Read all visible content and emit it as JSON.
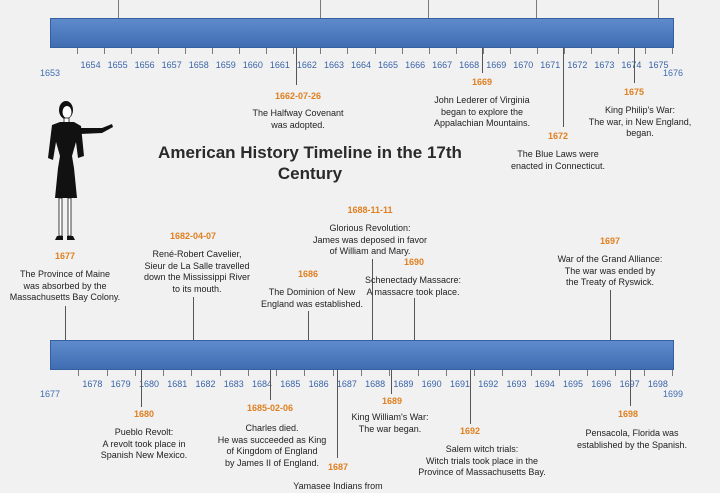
{
  "title": "American History Timeline in the 17th Century",
  "colors": {
    "band": "#4a78bf",
    "year": "#3a64a8",
    "date": "#e07f1f",
    "text": "#222222"
  },
  "timeline1": {
    "start_label": "1653",
    "end_label": "1676",
    "years": [
      "1654",
      "1655",
      "1656",
      "1657",
      "1658",
      "1659",
      "1660",
      "1661",
      "1662",
      "1663",
      "1664",
      "1665",
      "1666",
      "1667",
      "1668",
      "1669",
      "1670",
      "1671",
      "1672",
      "1673",
      "1674",
      "1675",
      "1676"
    ],
    "events": [
      {
        "date": "1662-07-26",
        "text": "The Halfway Covenant\nwas adopted."
      },
      {
        "date": "1669",
        "text": "John Lederer of Virginia\nbegan to explore the\nAppalachian Mountains."
      },
      {
        "date": "1672",
        "text": "The Blue Laws were\nenacted in Connecticut."
      },
      {
        "date": "1675",
        "text": "King Philip's War:\nThe war, in New England,\nbegan."
      }
    ]
  },
  "timeline2": {
    "start_label": "1677",
    "end_label": "1699",
    "years": [
      "1678",
      "1679",
      "1680",
      "1681",
      "1682",
      "1683",
      "1684",
      "1685",
      "1686",
      "1687",
      "1688",
      "1689",
      "1690",
      "1691",
      "1692",
      "1693",
      "1694",
      "1695",
      "1696",
      "1697",
      "1698",
      "1699"
    ],
    "events_above": [
      {
        "date": "1677",
        "text": "The Province of Maine\nwas absorbed by the\nMassachusetts Bay Colony."
      },
      {
        "date": "1682-04-07",
        "text": "René-Robert Cavelier,\nSieur de La Salle travelled\ndown the Mississippi River\nto its mouth."
      },
      {
        "date": "1686",
        "text": "The Dominion of New\nEngland was established."
      },
      {
        "date": "1688-11-11",
        "text": "Glorious Revolution:\nJames was deposed in favor\nof William and Mary."
      },
      {
        "date": "1690",
        "text": "Schenectady Massacre:\nA massacre took place."
      },
      {
        "date": "1697",
        "text": "War of the Grand Alliance:\nThe war was ended by\nthe Treaty of Ryswick."
      }
    ],
    "events_below": [
      {
        "date": "1680",
        "text": "Pueblo Revolt:\nA revolt took place in\nSpanish New Mexico."
      },
      {
        "date": "1685-02-06",
        "text": "Charles died.\nHe was succeeded as King\nof Kingdom of England\nby James II of England."
      },
      {
        "date": "1687",
        "text": "Yamasee Indians from"
      },
      {
        "date": "1689",
        "text": "King William's War:\nThe war began."
      },
      {
        "date": "1692",
        "text": "Salem witch trials:\nWitch trials took place in the\nProvince of Massachusetts Bay."
      },
      {
        "date": "1698",
        "text": "Pensacola, Florida was\nestablished by the Spanish."
      }
    ]
  }
}
